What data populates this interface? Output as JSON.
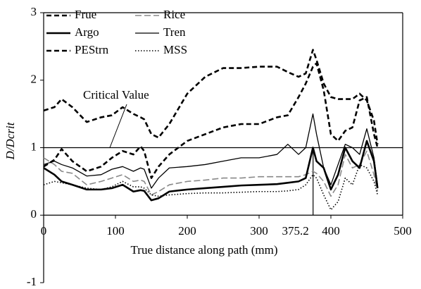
{
  "chart_data": {
    "type": "line",
    "x_label": "True distance along path (mm)",
    "y_label": "D/Dcrit",
    "x": [
      0,
      15,
      25,
      40,
      60,
      80,
      95,
      110,
      125,
      135,
      140,
      150,
      160,
      175,
      200,
      225,
      250,
      275,
      300,
      325,
      340,
      355,
      365,
      375,
      380,
      390,
      400,
      410,
      420,
      430,
      440,
      450,
      460,
      465
    ],
    "series": [
      {
        "name": "Frue",
        "color": "#000000",
        "width": 2.6,
        "dash": "7,4",
        "values": [
          1.55,
          1.6,
          1.72,
          1.6,
          1.38,
          1.45,
          1.48,
          1.6,
          1.5,
          1.45,
          1.42,
          1.2,
          1.15,
          1.35,
          1.8,
          2.05,
          2.18,
          2.18,
          2.2,
          2.2,
          2.12,
          2.05,
          2.1,
          2.45,
          2.3,
          1.95,
          1.75,
          1.72,
          1.72,
          1.72,
          1.8,
          1.7,
          1.4,
          1.05
        ]
      },
      {
        "name": "Rice",
        "color": "#888888",
        "width": 1.6,
        "dash": "9,4",
        "values": [
          0.85,
          0.75,
          0.65,
          0.62,
          0.45,
          0.5,
          0.55,
          0.6,
          0.5,
          0.52,
          0.5,
          0.3,
          0.35,
          0.45,
          0.5,
          0.52,
          0.55,
          0.55,
          0.57,
          0.57,
          0.57,
          0.57,
          0.6,
          0.65,
          0.62,
          0.5,
          0.28,
          0.45,
          0.9,
          0.7,
          0.75,
          0.95,
          0.6,
          0.35
        ]
      },
      {
        "name": "Argo",
        "color": "#000000",
        "width": 2.6,
        "dash": "none",
        "values": [
          0.7,
          0.6,
          0.5,
          0.45,
          0.38,
          0.38,
          0.4,
          0.45,
          0.35,
          0.37,
          0.36,
          0.22,
          0.25,
          0.35,
          0.38,
          0.4,
          0.42,
          0.44,
          0.45,
          0.46,
          0.48,
          0.5,
          0.55,
          1.0,
          0.8,
          0.7,
          0.38,
          0.6,
          1.0,
          0.8,
          0.7,
          1.1,
          0.8,
          0.4
        ]
      },
      {
        "name": "Tren",
        "color": "#000000",
        "width": 1.3,
        "dash": "none",
        "values": [
          0.75,
          0.8,
          0.75,
          0.7,
          0.58,
          0.6,
          0.68,
          0.72,
          0.65,
          0.7,
          0.68,
          0.4,
          0.55,
          0.7,
          0.72,
          0.75,
          0.8,
          0.85,
          0.85,
          0.9,
          1.05,
          0.9,
          1.0,
          1.5,
          1.2,
          0.7,
          0.45,
          0.75,
          1.05,
          1.0,
          0.9,
          1.28,
          0.85,
          0.45
        ]
      },
      {
        "name": "PEStrn",
        "color": "#000000",
        "width": 2.6,
        "dash": "7,4",
        "values": [
          0.72,
          0.82,
          0.98,
          0.8,
          0.65,
          0.72,
          0.85,
          0.95,
          0.9,
          1.02,
          0.95,
          0.55,
          0.72,
          0.9,
          1.1,
          1.2,
          1.3,
          1.35,
          1.35,
          1.45,
          1.48,
          1.75,
          1.95,
          2.2,
          2.25,
          1.85,
          1.2,
          1.1,
          1.25,
          1.3,
          1.7,
          1.75,
          1.2,
          1.0
        ]
      },
      {
        "name": "MSS",
        "color": "#000000",
        "width": 1.6,
        "dash": "1.5,2.5",
        "values": [
          0.45,
          0.5,
          0.48,
          0.45,
          0.4,
          0.38,
          0.42,
          0.5,
          0.42,
          0.42,
          0.4,
          0.3,
          0.28,
          0.3,
          0.32,
          0.33,
          0.33,
          0.34,
          0.35,
          0.35,
          0.36,
          0.38,
          0.45,
          0.6,
          0.55,
          0.3,
          0.08,
          0.2,
          0.55,
          0.45,
          0.75,
          0.7,
          0.5,
          0.3
        ]
      }
    ],
    "xlim": [
      0,
      500
    ],
    "xticks": [
      0,
      100,
      200,
      300,
      400,
      500
    ],
    "ylim": [
      -1,
      3
    ],
    "yticks": [
      -1,
      0,
      1,
      2,
      3
    ],
    "critical_value": 1,
    "critical_label": "Critical Value",
    "vline_x": 375.2
  }
}
